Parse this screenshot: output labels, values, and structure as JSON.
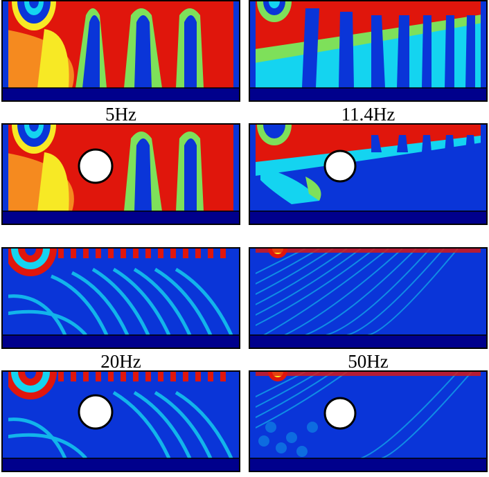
{
  "labels": {
    "f1": "5Hz",
    "f2": "11.4Hz",
    "f3": "20Hz",
    "f4": "50Hz"
  },
  "panels": [
    {
      "id": "p1",
      "freq_hz": 5,
      "obstacle": false
    },
    {
      "id": "p2",
      "freq_hz": 11.4,
      "obstacle": false
    },
    {
      "id": "p3",
      "freq_hz": 5,
      "obstacle": true
    },
    {
      "id": "p4",
      "freq_hz": 11.4,
      "obstacle": true
    },
    {
      "id": "p5",
      "freq_hz": 20,
      "obstacle": false
    },
    {
      "id": "p6",
      "freq_hz": 50,
      "obstacle": false
    },
    {
      "id": "p7",
      "freq_hz": 20,
      "obstacle": true
    },
    {
      "id": "p8",
      "freq_hz": 50,
      "obstacle": true
    }
  ],
  "colors": {
    "deep_blue": "#00008c",
    "blue": "#0a35d8",
    "cyan": "#14d4f0",
    "green": "#7ee05a",
    "yellow": "#f7e925",
    "orange": "#f58a1f",
    "red": "#e0160c",
    "dark_red": "#8e0000",
    "obstacle_fill": "#ffffff",
    "obstacle_stroke": "#000000"
  },
  "colormap": "jet"
}
